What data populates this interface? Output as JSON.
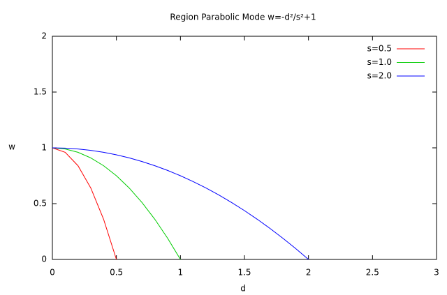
{
  "chart_data": {
    "type": "line",
    "title": "Region Parabolic Mode w=-d²/s²+1",
    "x_label": "d",
    "y_label": "w",
    "x": [
      0,
      0.1,
      0.2,
      0.3,
      0.4,
      0.5,
      0.6,
      0.7,
      0.8,
      0.9,
      1.0,
      1.1,
      1.2,
      1.3,
      1.4,
      1.5,
      1.6,
      1.7,
      1.8,
      1.9,
      2.0
    ],
    "series": [
      {
        "name": "s=0.5",
        "color": "#ff0000",
        "values": [
          1,
          0.96,
          0.84,
          0.64,
          0.36,
          0,
          null,
          null,
          null,
          null,
          null,
          null,
          null,
          null,
          null,
          null,
          null,
          null,
          null,
          null,
          null
        ]
      },
      {
        "name": "s=1.0",
        "color": "#00cc00",
        "values": [
          1,
          0.99,
          0.96,
          0.91,
          0.84,
          0.75,
          0.64,
          0.51,
          0.36,
          0.19,
          0,
          null,
          null,
          null,
          null,
          null,
          null,
          null,
          null,
          null,
          null
        ]
      },
      {
        "name": "s=2.0",
        "color": "#0000ff",
        "values": [
          1,
          0.9975,
          0.99,
          0.9775,
          0.96,
          0.9375,
          0.91,
          0.8775,
          0.84,
          0.7975,
          0.75,
          0.6975,
          0.64,
          0.5775,
          0.51,
          0.4375,
          0.36,
          0.2775,
          0.19,
          0.0975,
          0
        ]
      }
    ],
    "xlim": [
      0,
      3
    ],
    "xticks": [
      0,
      0.5,
      1,
      1.5,
      2,
      2.5,
      3
    ],
    "ylim": [
      0,
      2
    ],
    "yticks": [
      0,
      0.5,
      1,
      1.5,
      2
    ],
    "legend": "top-right"
  }
}
